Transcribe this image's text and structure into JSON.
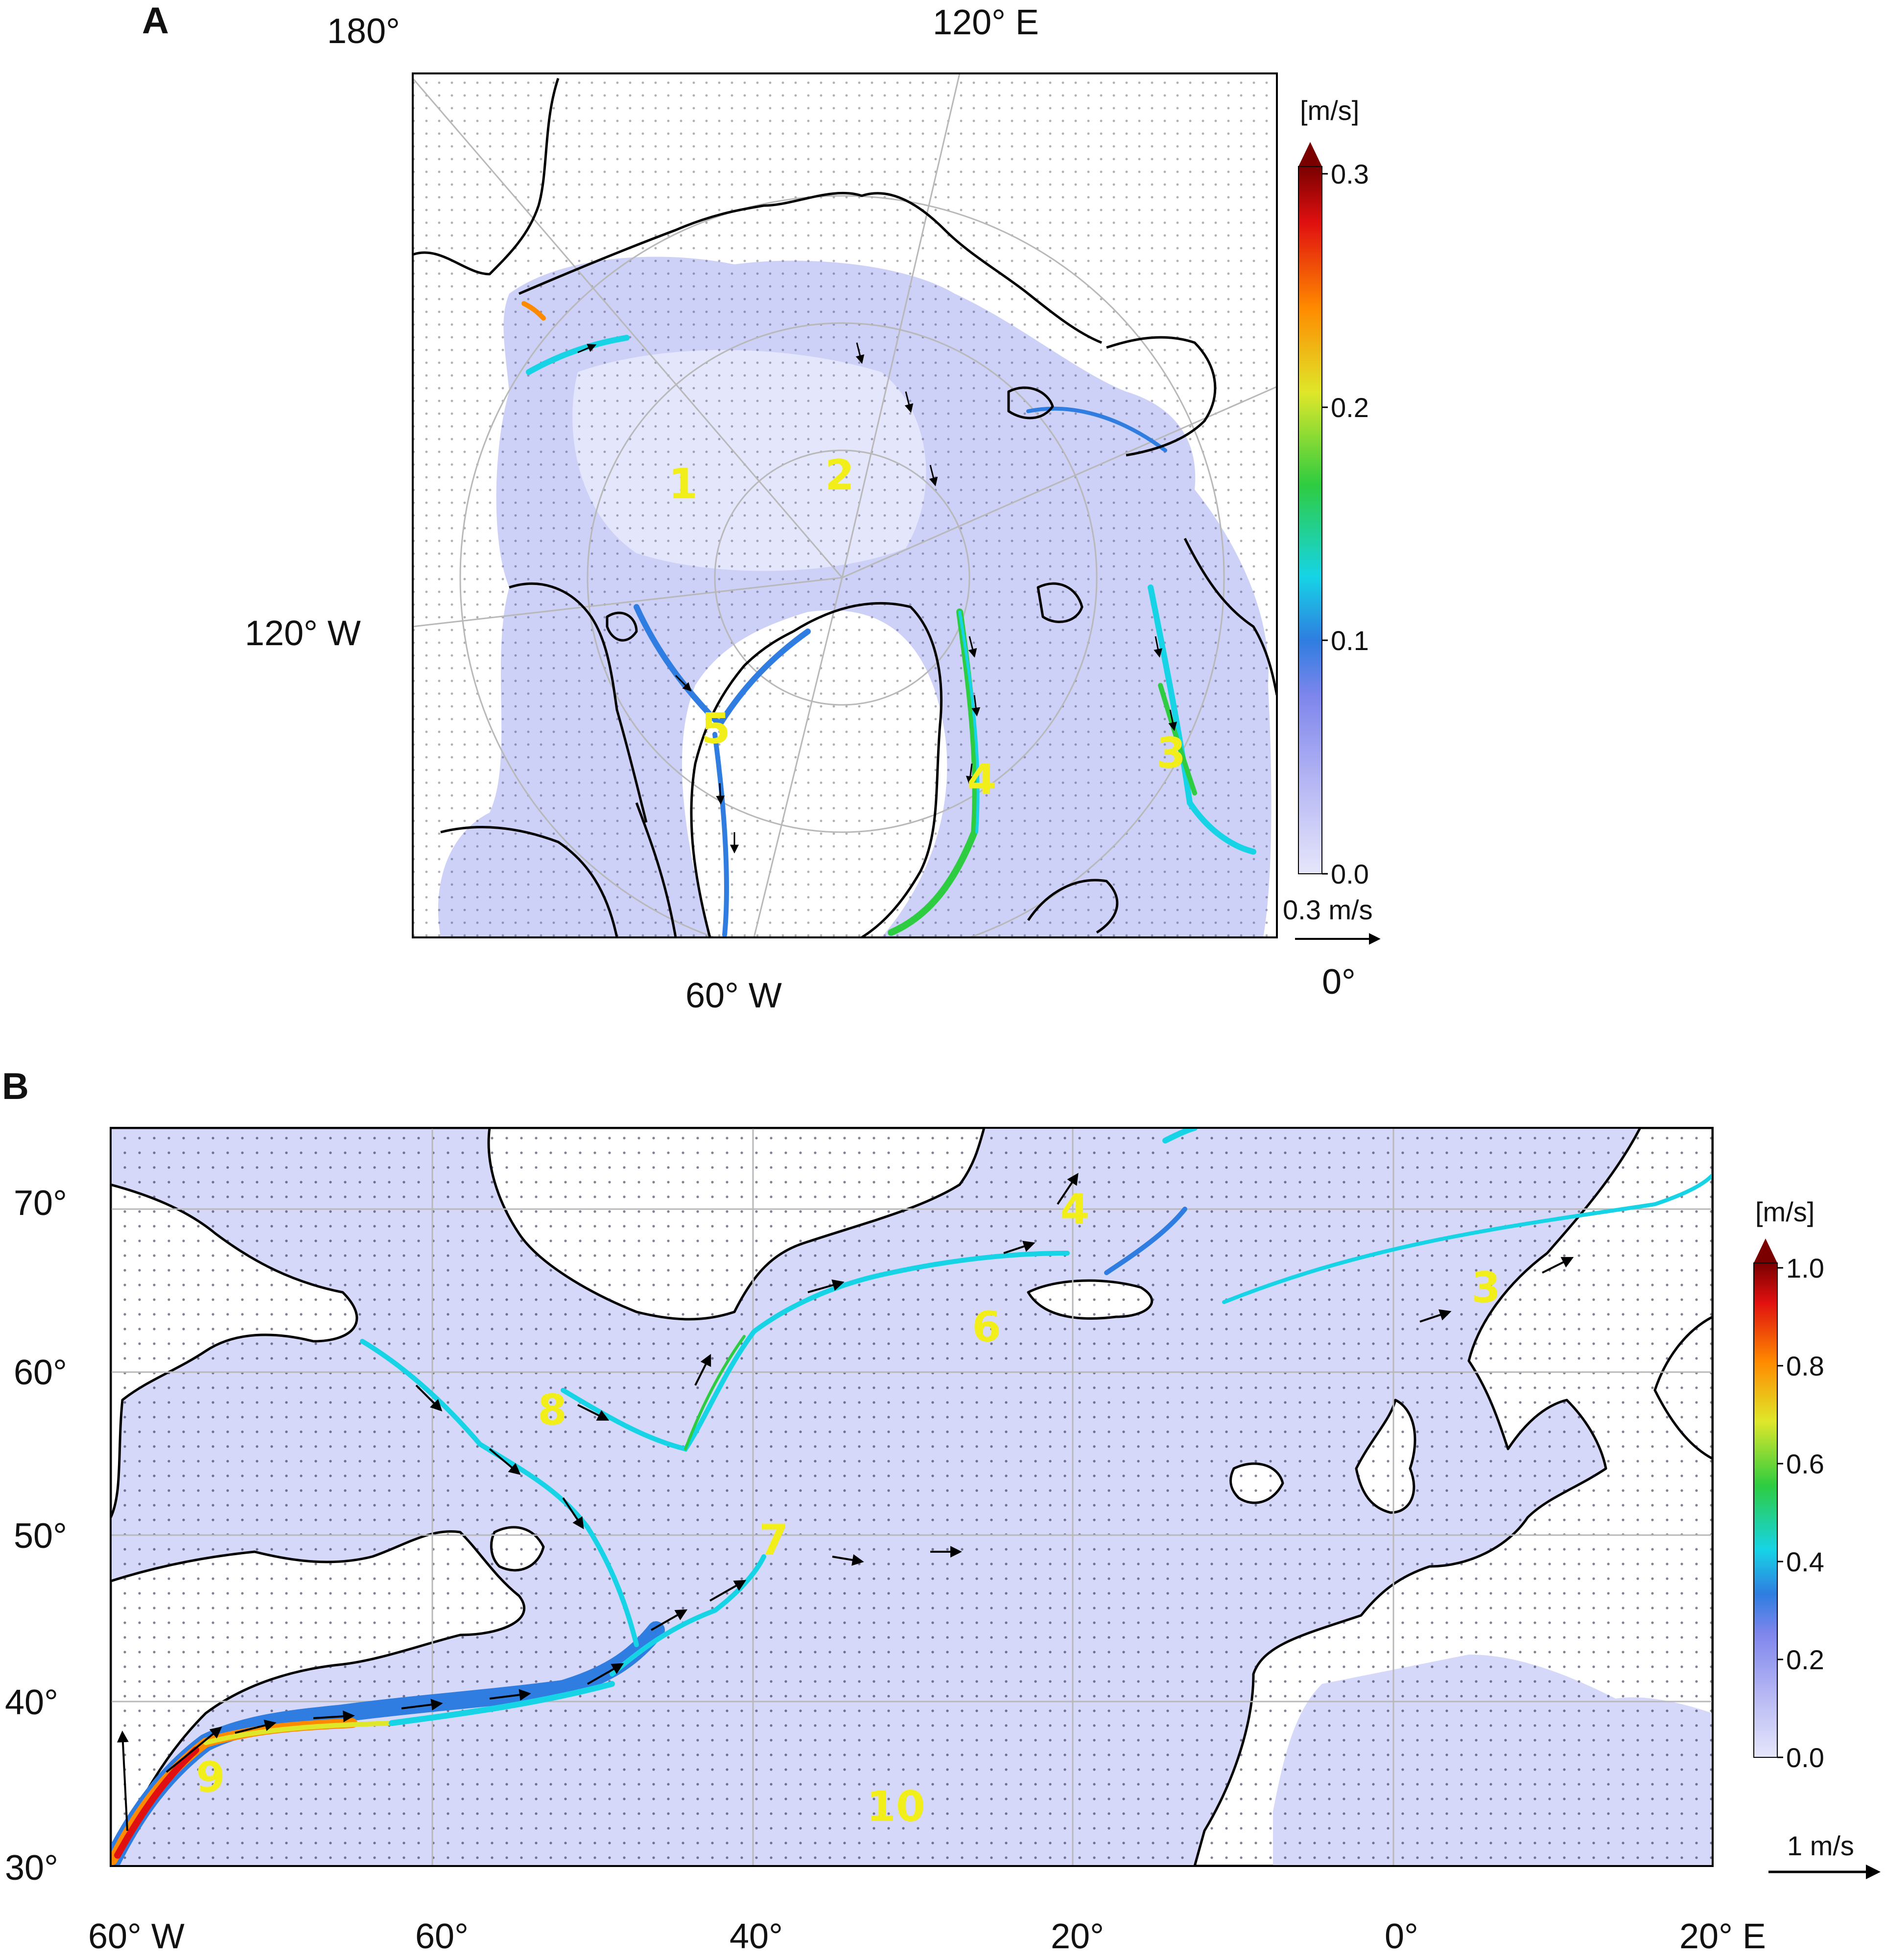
{
  "panels": [
    {
      "id": "A",
      "letter": "A",
      "coord_labels": {
        "top_left": "180°",
        "top_right": "120° E",
        "left": "120° W",
        "bottom_left": "60° W",
        "bottom_right": "0°"
      },
      "colorbar": {
        "unit": "[m/s]",
        "ticks": [
          "0.0",
          "0.1",
          "0.2",
          "0.3"
        ],
        "min": 0.0,
        "max": 0.3,
        "extend": "max"
      },
      "reference_arrow": "0.3 m/s",
      "regions": [
        "1",
        "2",
        "3",
        "4",
        "5"
      ]
    },
    {
      "id": "B",
      "letter": "B",
      "lat_labels": [
        "70°",
        "60°",
        "50°",
        "40°",
        "30°"
      ],
      "lon_labels": [
        "60° W",
        "60°",
        "40°",
        "20°",
        "0°",
        "20° E"
      ],
      "colorbar": {
        "unit": "[m/s]",
        "ticks": [
          "0.0",
          "0.2",
          "0.4",
          "0.6",
          "0.8",
          "1.0"
        ],
        "min": 0.0,
        "max": 1.0,
        "extend": "max"
      },
      "reference_arrow": "1 m/s",
      "regions": [
        "3",
        "4",
        "6",
        "7",
        "8",
        "9",
        "10"
      ]
    }
  ],
  "colors": {
    "ocean_low": "#d9dcfb",
    "colormap": [
      "#e6e6fb",
      "#9a9cf0",
      "#2f7de0",
      "#16d4e6",
      "#2ecc40",
      "#dfe72a",
      "#ff8a00",
      "#e01010",
      "#7a0000"
    ],
    "region_label": "#f2ee1a"
  }
}
